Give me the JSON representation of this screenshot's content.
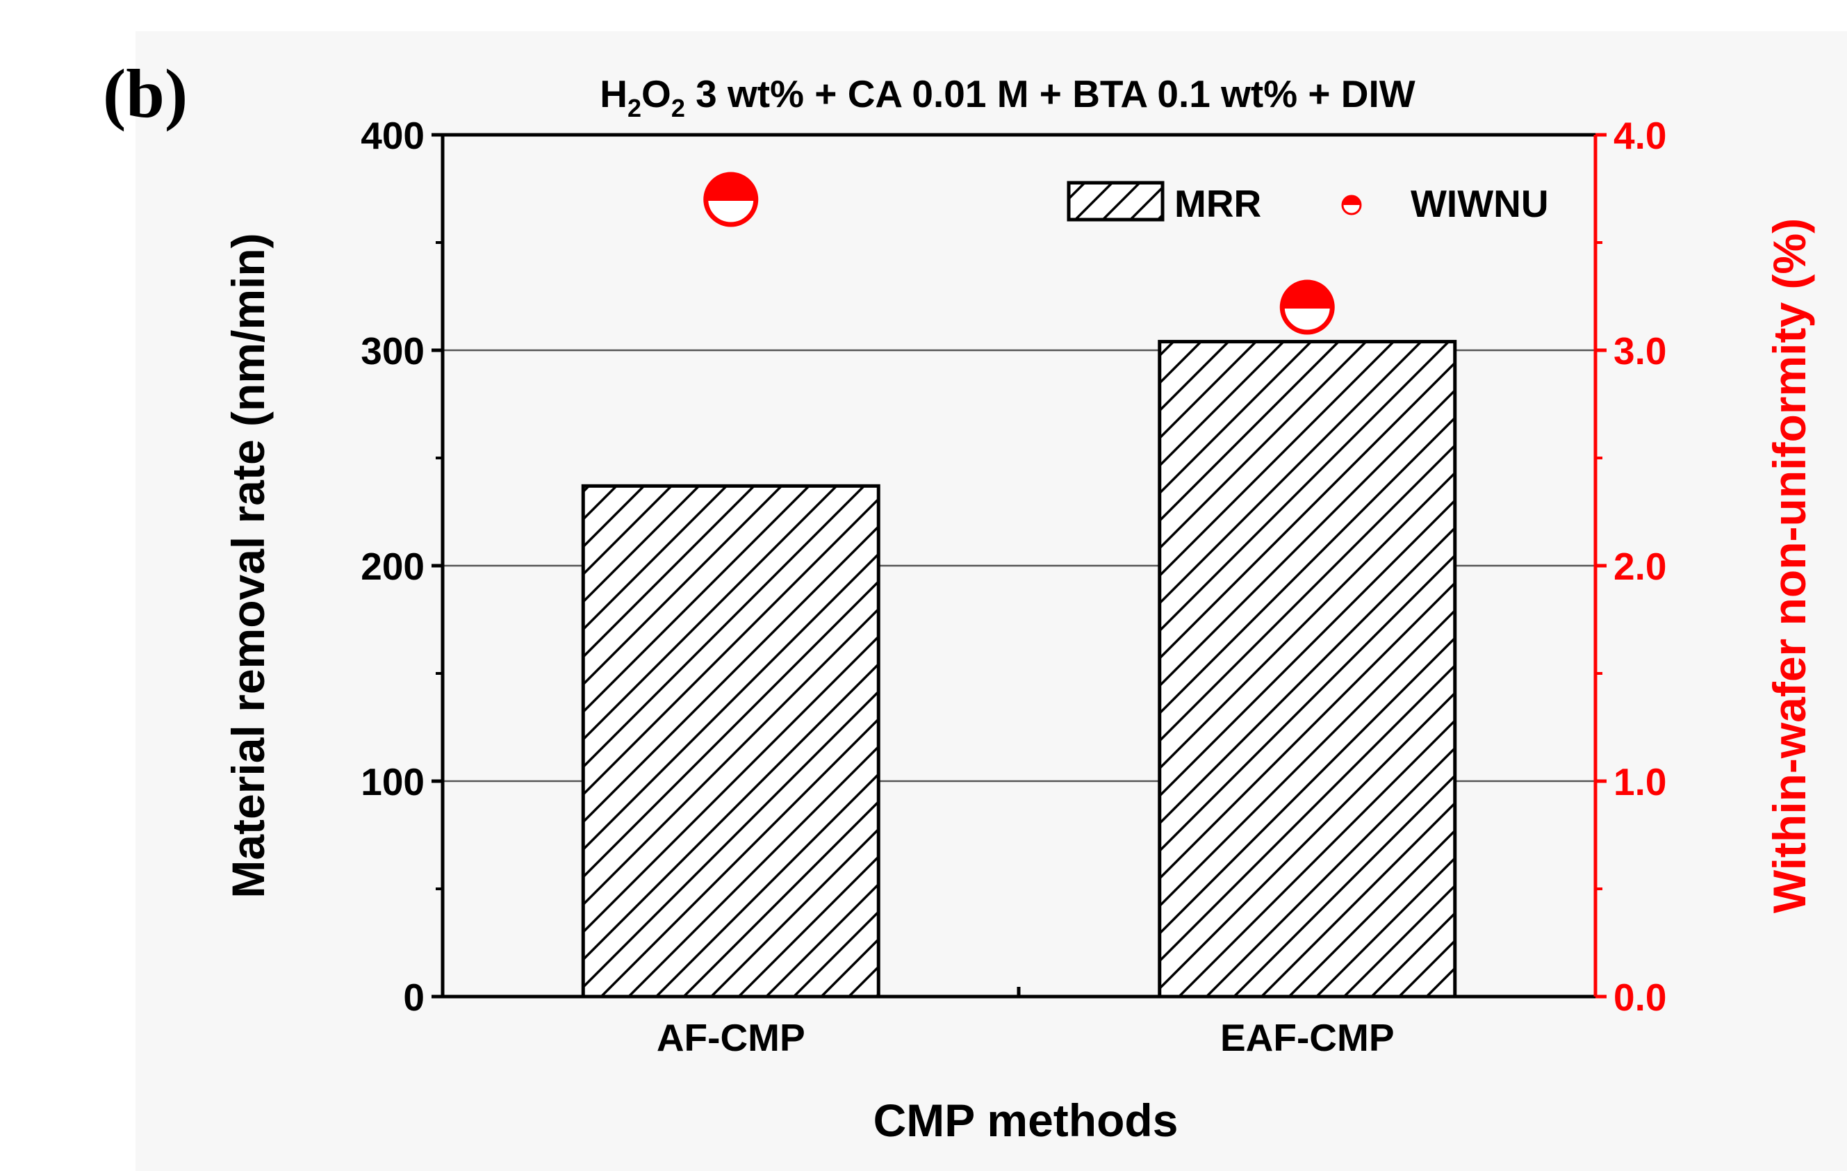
{
  "chart_data": {
    "type": "bar",
    "panel_label": "(b)",
    "title_parts": {
      "h": "H",
      "sub1": "2",
      "o": "O",
      "sub2": "2",
      "rest": " 3 wt% + CA 0.01 M + BTA 0.1 wt% + DIW"
    },
    "xlabel": "CMP methods",
    "ylabel": "Material removal rate (nm/min)",
    "y2label": "Within-wafer non-uniformity (%)",
    "categories": [
      "AF-CMP",
      "EAF-CMP"
    ],
    "ylim": [
      0,
      400
    ],
    "yticks": [
      "0",
      "100",
      "200",
      "300",
      "400"
    ],
    "y2lim": [
      0,
      4.0
    ],
    "y2ticks": [
      "0.0",
      "1.0",
      "2.0",
      "3.0",
      "4.0"
    ],
    "grid": true,
    "legend_position": "top-right",
    "series": [
      {
        "name": "MRR",
        "kind": "bar",
        "axis": "left",
        "pattern": "diagonal-hatch",
        "values": [
          237,
          304
        ]
      },
      {
        "name": "WIWNU",
        "kind": "scatter",
        "axis": "right",
        "marker": "half-filled-circle",
        "values": [
          3.7,
          3.2
        ]
      }
    ],
    "colors": {
      "primary_axis": "#000000",
      "secondary_axis": "#ff0000",
      "grid": "#555555",
      "background": "#f7f7f7"
    }
  }
}
